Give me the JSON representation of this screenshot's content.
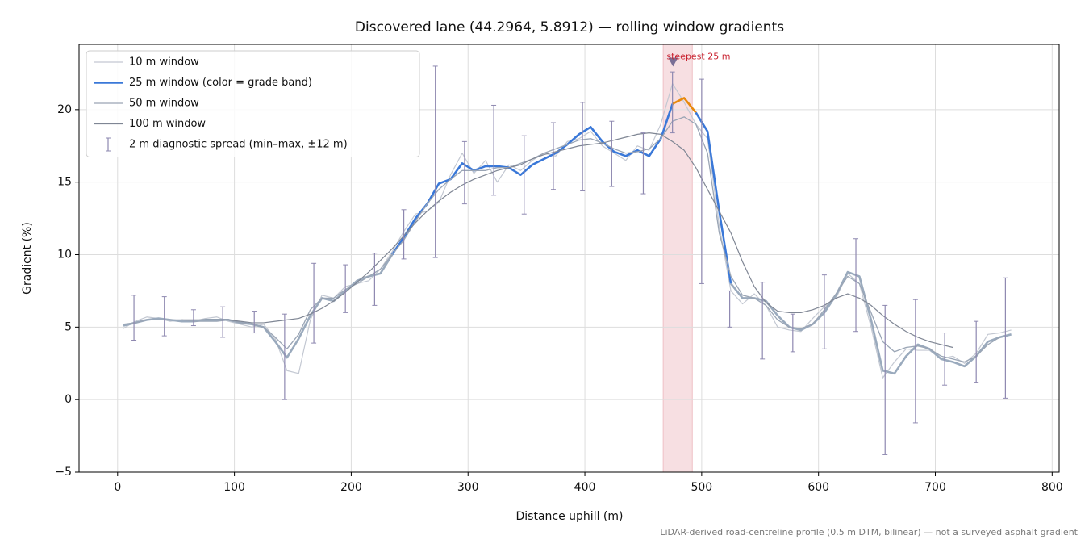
{
  "chart_data": {
    "type": "line",
    "title": "Discovered lane (44.2964, 5.8912) — rolling window gradients",
    "xlabel": "Distance uphill (m)",
    "ylabel": "Gradient (%)",
    "footnote": "LiDAR-derived road-centreline profile (0.5 m DTM, bilinear) — not a surveyed asphalt gradient",
    "xlim": [
      -33,
      806
    ],
    "ylim": [
      -5.0,
      24.5
    ],
    "xticks": [
      0,
      100,
      200,
      300,
      400,
      500,
      600,
      700,
      800
    ],
    "yticks": [
      {
        "value": -5,
        "label": "−5"
      },
      0,
      5,
      10,
      15,
      20
    ],
    "grid": true,
    "legend": "upper left",
    "x": [
      5,
      15,
      25,
      35,
      45,
      55,
      65,
      75,
      85,
      95,
      105,
      115,
      125,
      135,
      145,
      155,
      165,
      175,
      185,
      195,
      205,
      215,
      225,
      235,
      245,
      255,
      265,
      275,
      285,
      295,
      305,
      315,
      325,
      335,
      345,
      355,
      365,
      375,
      385,
      395,
      405,
      415,
      425,
      435,
      445,
      455,
      465,
      475,
      485,
      495,
      505,
      515,
      525,
      535,
      545,
      555,
      565,
      575,
      585,
      595,
      605,
      615,
      625,
      635,
      645,
      655,
      665,
      675,
      685,
      695,
      705,
      715,
      725,
      735,
      745,
      755,
      765
    ],
    "series": [
      {
        "name": "10 m window",
        "color": "#c3c8d2",
        "linewidth": 1.2,
        "values": [
          4.9,
          5.4,
          5.7,
          5.6,
          5.4,
          5.5,
          5.4,
          5.6,
          5.7,
          5.4,
          5.2,
          5.0,
          5.2,
          4.2,
          2.0,
          1.8,
          5.5,
          7.2,
          7.0,
          7.8,
          8.0,
          8.2,
          9.0,
          10.2,
          11.6,
          12.8,
          13.0,
          13.6,
          15.5,
          17.0,
          15.6,
          16.5,
          15.0,
          16.2,
          15.8,
          16.5,
          17.0,
          16.8,
          17.8,
          18.0,
          18.5,
          17.5,
          17.0,
          16.5,
          17.5,
          17.2,
          19.0,
          21.8,
          20.5,
          19.0,
          18.0,
          12.0,
          7.5,
          6.6,
          7.3,
          6.5,
          5.0,
          4.8,
          4.7,
          5.6,
          6.4,
          7.0,
          8.7,
          8.0,
          5.0,
          1.5,
          2.6,
          3.5,
          3.4,
          3.4,
          2.8,
          3.0,
          2.5,
          3.2,
          4.5,
          4.6,
          4.8
        ]
      },
      {
        "name": "25 m window (color = grade band)",
        "color": "#3a78d8",
        "linewidth": 2.6,
        "bands": [
          {
            "below": 10,
            "color": "#9aaabd"
          },
          {
            "below": 20,
            "color": "#3a78d8"
          },
          {
            "color": "#e8890c"
          }
        ],
        "values": [
          5.1,
          5.3,
          5.5,
          5.6,
          5.5,
          5.4,
          5.4,
          5.5,
          5.5,
          5.5,
          5.3,
          5.2,
          5.0,
          4.0,
          2.9,
          4.2,
          5.8,
          7.0,
          6.8,
          7.5,
          8.2,
          8.5,
          8.7,
          10.0,
          11.2,
          12.5,
          13.5,
          14.9,
          15.2,
          16.3,
          15.8,
          16.1,
          16.1,
          16.0,
          15.5,
          16.2,
          16.6,
          17.0,
          17.6,
          18.3,
          18.8,
          17.8,
          17.1,
          16.8,
          17.2,
          16.8,
          18.0,
          20.4,
          20.8,
          19.8,
          18.5,
          13.0,
          8.0,
          7.0,
          7.0,
          6.8,
          5.8,
          5.0,
          4.8,
          5.2,
          6.0,
          7.2,
          8.8,
          8.5,
          5.5,
          2.0,
          1.8,
          3.0,
          3.8,
          3.5,
          2.8,
          2.6,
          2.3,
          3.0,
          4.0,
          4.3,
          4.5
        ]
      },
      {
        "name": "50 m window",
        "color": "#9aa5b5",
        "linewidth": 1.3,
        "values": [
          5.2,
          5.3,
          5.5,
          5.5,
          5.5,
          5.5,
          5.4,
          5.4,
          5.4,
          5.5,
          5.3,
          5.2,
          5.0,
          4.3,
          3.5,
          4.5,
          6.2,
          7.0,
          7.0,
          7.6,
          8.0,
          8.5,
          9.0,
          10.0,
          11.0,
          12.3,
          13.5,
          14.5,
          15.2,
          15.8,
          15.8,
          15.8,
          16.0,
          16.0,
          16.3,
          16.6,
          17.0,
          17.3,
          17.6,
          17.9,
          18.0,
          17.7,
          17.3,
          17.0,
          17.1,
          17.3,
          18.0,
          19.2,
          19.5,
          19.0,
          17.0,
          11.5,
          8.5,
          7.2,
          7.0,
          6.5,
          5.5,
          5.0,
          4.9,
          5.2,
          6.2,
          7.3,
          8.5,
          8.0,
          6.0,
          4.0,
          3.3,
          3.6,
          3.7,
          3.5,
          3.0,
          2.8,
          2.6,
          3.0,
          3.8,
          4.3,
          null
        ]
      },
      {
        "name": "100 m window",
        "color": "#7f8694",
        "linewidth": 1.2,
        "values": [
          null,
          null,
          null,
          null,
          null,
          5.5,
          5.5,
          5.5,
          5.5,
          5.5,
          5.4,
          5.3,
          5.3,
          5.4,
          5.5,
          5.6,
          5.9,
          6.3,
          6.8,
          7.4,
          8.1,
          8.8,
          9.6,
          10.4,
          11.3,
          12.2,
          13.0,
          13.7,
          14.3,
          14.8,
          15.2,
          15.5,
          15.8,
          16.0,
          16.2,
          16.6,
          16.9,
          17.1,
          17.3,
          17.5,
          17.6,
          17.7,
          17.9,
          18.1,
          18.3,
          18.4,
          18.3,
          17.8,
          17.2,
          16.0,
          14.5,
          13.0,
          11.5,
          9.5,
          7.8,
          6.7,
          6.1,
          6.0,
          6.0,
          6.2,
          6.5,
          7.0,
          7.3,
          7.0,
          6.5,
          5.8,
          5.2,
          4.7,
          4.3,
          4.0,
          3.8,
          3.6,
          null,
          null,
          null,
          null,
          null
        ]
      }
    ],
    "errorbars": {
      "name": "2 m diagnostic spread (min–max, ±12 m)",
      "color": "#8e88b0",
      "x": [
        14,
        40,
        65,
        90,
        117,
        143,
        168,
        195,
        220,
        245,
        272,
        297,
        322,
        348,
        373,
        398,
        423,
        450,
        475,
        500,
        524,
        552,
        578,
        605,
        632,
        657,
        683,
        708,
        735,
        760
      ],
      "low": [
        4.1,
        4.4,
        5.1,
        4.3,
        4.6,
        0.0,
        3.9,
        6.0,
        6.5,
        9.7,
        9.8,
        13.5,
        14.1,
        12.8,
        14.5,
        14.4,
        14.7,
        14.2,
        18.4,
        8.0,
        5.0,
        2.8,
        3.3,
        3.5,
        4.7,
        -3.8,
        -1.6,
        1.0,
        1.2,
        0.1
      ],
      "high": [
        7.2,
        7.1,
        6.2,
        6.4,
        6.1,
        5.9,
        9.4,
        9.3,
        10.1,
        13.1,
        23.0,
        17.8,
        20.3,
        18.2,
        19.1,
        20.5,
        19.2,
        18.4,
        22.6,
        22.1,
        7.5,
        8.1,
        5.9,
        8.6,
        11.1,
        6.5,
        6.9,
        4.6,
        5.4,
        8.4
      ]
    },
    "highlight": {
      "xspan": [
        467,
        492
      ],
      "color": "#e8a4ac",
      "label": "steepest 25 m",
      "label_color": "#c8202e",
      "marker": {
        "x": 475.5,
        "y": 23.3,
        "color": "#7a6f96"
      }
    }
  }
}
